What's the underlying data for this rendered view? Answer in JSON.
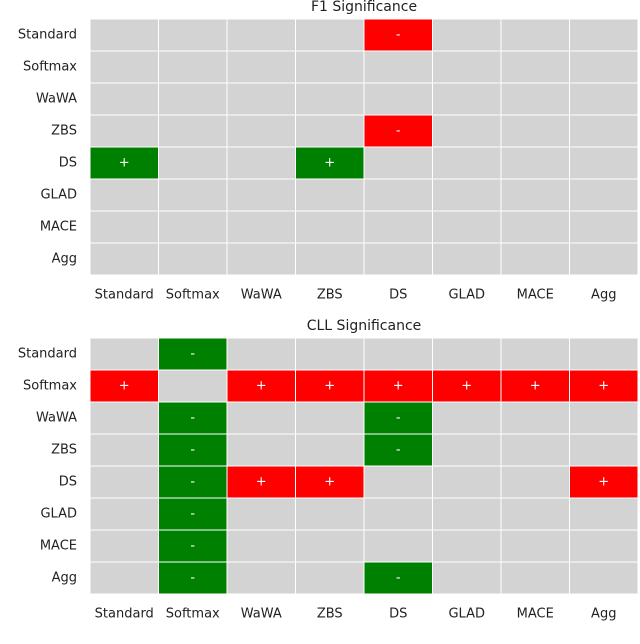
{
  "chart_data": [
    {
      "type": "heatmap",
      "title": "F1 Significance",
      "rows": [
        "Standard",
        "Softmax",
        "WaWA",
        "ZBS",
        "DS",
        "GLAD",
        "MACE",
        "Agg"
      ],
      "columns": [
        "Standard",
        "Softmax",
        "WaWA",
        "ZBS",
        "DS",
        "GLAD",
        "MACE",
        "Agg"
      ],
      "background": "#d3d3d3",
      "cell_colors": {
        "+": "#008000",
        "-": "#ff0000"
      },
      "values": [
        [
          null,
          null,
          null,
          null,
          "-",
          null,
          null,
          null
        ],
        [
          null,
          null,
          null,
          null,
          null,
          null,
          null,
          null
        ],
        [
          null,
          null,
          null,
          null,
          null,
          null,
          null,
          null
        ],
        [
          null,
          null,
          null,
          null,
          "-",
          null,
          null,
          null
        ],
        [
          "+",
          null,
          null,
          "+",
          null,
          null,
          null,
          null
        ],
        [
          null,
          null,
          null,
          null,
          null,
          null,
          null,
          null
        ],
        [
          null,
          null,
          null,
          null,
          null,
          null,
          null,
          null
        ],
        [
          null,
          null,
          null,
          null,
          null,
          null,
          null,
          null
        ]
      ]
    },
    {
      "type": "heatmap",
      "title": "CLL Significance",
      "rows": [
        "Standard",
        "Softmax",
        "WaWA",
        "ZBS",
        "DS",
        "GLAD",
        "MACE",
        "Agg"
      ],
      "columns": [
        "Standard",
        "Softmax",
        "WaWA",
        "ZBS",
        "DS",
        "GLAD",
        "MACE",
        "Agg"
      ],
      "background": "#d3d3d3",
      "cell_colors": {
        "+": "#ff0000",
        "-": "#008000"
      },
      "values": [
        [
          null,
          "-",
          null,
          null,
          null,
          null,
          null,
          null
        ],
        [
          "+",
          null,
          "+",
          "+",
          "+",
          "+",
          "+",
          "+"
        ],
        [
          null,
          "-",
          null,
          null,
          "-",
          null,
          null,
          null
        ],
        [
          null,
          "-",
          null,
          null,
          "-",
          null,
          null,
          null
        ],
        [
          null,
          "-",
          "+",
          "+",
          null,
          null,
          null,
          "+"
        ],
        [
          null,
          "-",
          null,
          null,
          null,
          null,
          null,
          null
        ],
        [
          null,
          "-",
          null,
          null,
          null,
          null,
          null,
          null
        ],
        [
          null,
          "-",
          null,
          null,
          "-",
          null,
          null,
          null
        ]
      ]
    }
  ]
}
